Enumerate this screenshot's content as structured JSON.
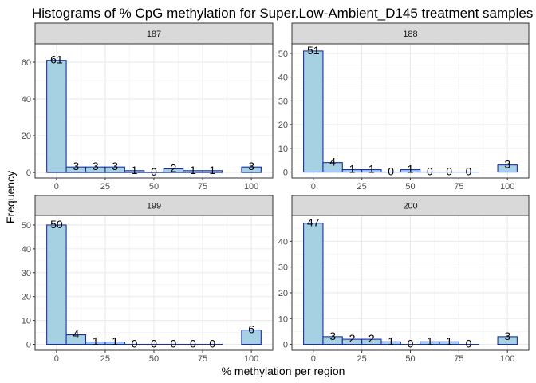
{
  "chart_data": {
    "type": "bar",
    "title": "Histograms of % CpG methylation for Super.Low-Ambient_D145 treatment samples",
    "xlabel": "% methylation per region",
    "ylabel": "Frequency",
    "bin_width": 10,
    "bin_centers": [
      0,
      10,
      20,
      30,
      40,
      50,
      60,
      70,
      80,
      90,
      100
    ],
    "x_ticks": [
      0,
      25,
      50,
      75,
      100
    ],
    "x_tick_labels": [
      "0",
      "25",
      "50",
      "75",
      "100"
    ],
    "xlim": [
      -11,
      111
    ],
    "grid": true,
    "bar_fill": "#a6d1e3",
    "bar_stroke": "#1a2fa0",
    "strip_fill": "#d9d9d9",
    "panels": [
      {
        "label": "187",
        "counts": [
          61,
          3,
          3,
          3,
          1,
          0,
          2,
          1,
          1,
          3
        ],
        "count_labels": [
          "61",
          "3",
          "3",
          "3",
          "1",
          "0",
          "2",
          "1",
          "1",
          "3"
        ],
        "bins": [
          0,
          10,
          20,
          30,
          40,
          50,
          60,
          70,
          80,
          100
        ],
        "ylim": [
          -3,
          70
        ],
        "y_ticks": [
          0,
          20,
          40,
          60
        ],
        "y_tick_labels": [
          "0",
          "20",
          "40",
          "60"
        ]
      },
      {
        "label": "188",
        "counts": [
          51,
          4,
          1,
          1,
          0,
          1,
          0,
          0,
          0,
          3
        ],
        "count_labels": [
          "51",
          "4",
          "1",
          "1",
          "0",
          "1",
          "0",
          "0",
          "0",
          "3"
        ],
        "bins": [
          0,
          10,
          20,
          30,
          40,
          50,
          60,
          70,
          80,
          100
        ],
        "ylim": [
          -2.5,
          54
        ],
        "y_ticks": [
          0,
          10,
          20,
          30,
          40,
          50
        ],
        "y_tick_labels": [
          "0",
          "10",
          "20",
          "30",
          "40",
          "50"
        ]
      },
      {
        "label": "199",
        "counts": [
          50,
          4,
          1,
          1,
          0,
          0,
          0,
          0,
          0,
          6
        ],
        "count_labels": [
          "50",
          "4",
          "1",
          "1",
          "0",
          "0",
          "0",
          "0",
          "0",
          "6"
        ],
        "bins": [
          0,
          10,
          20,
          30,
          40,
          50,
          60,
          70,
          80,
          100
        ],
        "ylim": [
          -2.5,
          54
        ],
        "y_ticks": [
          0,
          10,
          20,
          30,
          40,
          50
        ],
        "y_tick_labels": [
          "0",
          "10",
          "20",
          "30",
          "40",
          "50"
        ]
      },
      {
        "label": "200",
        "counts": [
          47,
          3,
          2,
          2,
          1,
          0,
          1,
          1,
          0,
          3
        ],
        "count_labels": [
          "47",
          "3",
          "2",
          "2",
          "1",
          "0",
          "1",
          "1",
          "0",
          "3"
        ],
        "bins": [
          0,
          10,
          20,
          30,
          40,
          50,
          60,
          70,
          80,
          100
        ],
        "ylim": [
          -2.3,
          50
        ],
        "y_ticks": [
          0,
          10,
          20,
          30,
          40
        ],
        "y_tick_labels": [
          "0",
          "10",
          "20",
          "30",
          "40"
        ]
      }
    ]
  }
}
